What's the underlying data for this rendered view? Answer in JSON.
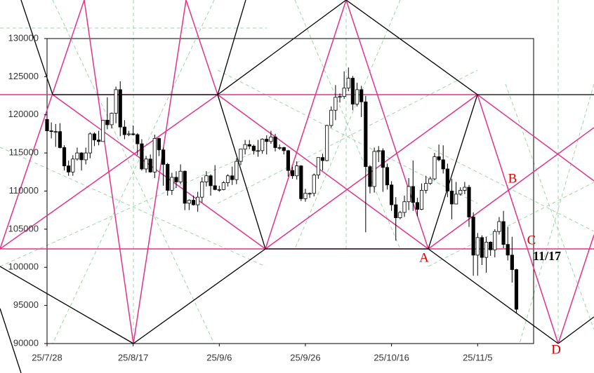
{
  "chart_data": {
    "type": "candlestick",
    "x": [
      "25/7/28",
      "25/7/29",
      "25/7/30",
      "25/7/31",
      "25/8/1",
      "25/8/2",
      "25/8/3",
      "25/8/4",
      "25/8/5",
      "25/8/6",
      "25/8/7",
      "25/8/8",
      "25/8/9",
      "25/8/10",
      "25/8/11",
      "25/8/12",
      "25/8/13",
      "25/8/14",
      "25/8/15",
      "25/8/16",
      "25/8/17",
      "25/8/18",
      "25/8/19",
      "25/8/20",
      "25/8/21",
      "25/8/22",
      "25/8/23",
      "25/8/24",
      "25/8/25",
      "25/8/26",
      "25/8/27",
      "25/8/28",
      "25/8/29",
      "25/8/30",
      "25/8/31",
      "25/9/1",
      "25/9/2",
      "25/9/3",
      "25/9/4",
      "25/9/5",
      "25/9/6",
      "25/9/7",
      "25/9/8",
      "25/9/9",
      "25/9/10",
      "25/9/11",
      "25/9/12",
      "25/9/13",
      "25/9/14",
      "25/9/15",
      "25/9/16",
      "25/9/17",
      "25/9/18",
      "25/9/19",
      "25/9/20",
      "25/9/21",
      "25/9/22",
      "25/9/23",
      "25/9/24",
      "25/9/25",
      "25/9/26",
      "25/9/27",
      "25/9/28",
      "25/9/29",
      "25/9/30",
      "25/10/1",
      "25/10/2",
      "25/10/3",
      "25/10/4",
      "25/10/5",
      "25/10/6",
      "25/10/7",
      "25/10/8",
      "25/10/9",
      "25/10/10",
      "25/10/11",
      "25/10/12",
      "25/10/13",
      "25/10/14",
      "25/10/15",
      "25/10/16",
      "25/10/17",
      "25/10/18",
      "25/10/19",
      "25/10/20",
      "25/10/21",
      "25/10/22",
      "25/10/23",
      "25/10/24",
      "25/10/25",
      "25/10/26",
      "25/10/27",
      "25/10/28",
      "25/10/29",
      "25/10/30",
      "25/10/31",
      "25/11/1",
      "25/11/2",
      "25/11/3",
      "25/11/4",
      "25/11/5",
      "25/11/6",
      "25/11/7",
      "25/11/8",
      "25/11/9",
      "25/11/10",
      "25/11/11",
      "25/11/12",
      "25/11/13",
      "25/11/14"
    ],
    "open": [
      119400,
      117900,
      117800,
      117800,
      115700,
      113300,
      112500,
      114200,
      115000,
      114100,
      115000,
      117500,
      116700,
      116500,
      119300,
      118700,
      120200,
      123300,
      118400,
      117400,
      117500,
      117400,
      116200,
      112900,
      114200,
      112500,
      116900,
      115400,
      113500,
      110100,
      111800,
      111200,
      112600,
      108400,
      108800,
      108200,
      109200,
      111200,
      112000,
      110700,
      110200,
      110200,
      111100,
      112000,
      111500,
      113900,
      115500,
      116100,
      115900,
      115300,
      115300,
      116800,
      116500,
      117100,
      115700,
      115700,
      115300,
      112700,
      112000,
      113300,
      109000,
      109700,
      109700,
      112100,
      114400,
      114000,
      118600,
      120600,
      122300,
      122400,
      123500,
      124800,
      121400,
      123300,
      121700,
      113200,
      110600,
      115200,
      115300,
      113100,
      110800,
      108200,
      106500,
      107200,
      108600,
      110600,
      108500,
      107600,
      110100,
      111000,
      111600,
      114500,
      114100,
      112900,
      110000,
      108300,
      109600,
      110100,
      110500,
      106600,
      101600,
      103900,
      101300,
      103300,
      102300,
      104700,
      106000,
      103000,
      101600,
      99700
    ],
    "high": [
      119800,
      119000,
      118800,
      118900,
      116000,
      114000,
      114700,
      115700,
      115100,
      115700,
      117700,
      117700,
      117900,
      119300,
      122300,
      120300,
      123700,
      124400,
      119300,
      117900,
      118600,
      117600,
      116800,
      114600,
      114800,
      117400,
      117000,
      115700,
      113700,
      112400,
      112600,
      113500,
      112700,
      108900,
      109400,
      109900,
      111800,
      112600,
      112200,
      113400,
      110700,
      111300,
      112200,
      113200,
      114300,
      115500,
      116700,
      116700,
      116100,
      116700,
      116900,
      117300,
      117900,
      117500,
      116100,
      115800,
      115400,
      113200,
      113900,
      113400,
      110300,
      109800,
      112300,
      114400,
      114900,
      118700,
      121100,
      123900,
      122800,
      125700,
      126200,
      125100,
      124200,
      123800,
      122500,
      113400,
      115700,
      115900,
      115600,
      113600,
      111300,
      109200,
      107400,
      109400,
      111700,
      114000,
      109100,
      111000,
      112000,
      111900,
      115000,
      116100,
      116000,
      113600,
      111600,
      111200,
      110500,
      111200,
      110800,
      107200,
      104500,
      104200,
      104000,
      103400,
      105000,
      106600,
      107400,
      105300,
      104000,
      99800
    ],
    "low": [
      117400,
      116900,
      115800,
      115600,
      112700,
      112000,
      112000,
      114000,
      112700,
      113500,
      114300,
      115900,
      116000,
      116500,
      118100,
      118200,
      118900,
      117200,
      116800,
      117200,
      117300,
      114700,
      112700,
      112400,
      112400,
      111700,
      114600,
      110700,
      109400,
      109500,
      110400,
      110900,
      107500,
      107500,
      108100,
      107300,
      108500,
      110600,
      109400,
      110100,
      109900,
      110100,
      110600,
      110800,
      110900,
      113400,
      114800,
      115500,
      114800,
      114500,
      114900,
      114800,
      116200,
      115200,
      115400,
      114800,
      111900,
      111600,
      111500,
      108700,
      108600,
      109100,
      109300,
      111600,
      112700,
      113900,
      118300,
      119300,
      121600,
      122100,
      123100,
      120600,
      121100,
      119700,
      104600,
      109700,
      109800,
      113800,
      109900,
      110200,
      107400,
      103500,
      106300,
      106600,
      107500,
      107400,
      106700,
      107500,
      109700,
      110800,
      111400,
      113900,
      112300,
      109200,
      106300,
      108300,
      109400,
      109600,
      105300,
      98900,
      98900,
      100300,
      99300,
      101500,
      101300,
      104300,
      102500,
      100900,
      98000,
      94000
    ],
    "close": [
      117900,
      117800,
      117800,
      115700,
      113300,
      112500,
      114200,
      115000,
      114100,
      115000,
      117500,
      116700,
      116500,
      119300,
      118700,
      120200,
      123300,
      118400,
      117400,
      117500,
      117400,
      116200,
      112900,
      114200,
      112500,
      116900,
      115400,
      113500,
      110100,
      111800,
      111200,
      112600,
      108400,
      108800,
      108200,
      109200,
      111200,
      112000,
      110700,
      110200,
      110200,
      111100,
      112000,
      111500,
      113900,
      115500,
      116100,
      115900,
      115300,
      115300,
      116800,
      116500,
      117100,
      115700,
      115700,
      115300,
      112700,
      112000,
      113300,
      109000,
      109700,
      109700,
      112100,
      114400,
      114000,
      118600,
      120600,
      122300,
      122400,
      123500,
      124800,
      121400,
      123300,
      121700,
      113200,
      110600,
      115200,
      115300,
      113100,
      110800,
      108200,
      106500,
      107200,
      108600,
      110600,
      108500,
      107600,
      110100,
      111000,
      111600,
      114500,
      114100,
      112900,
      110000,
      108300,
      109600,
      110100,
      110500,
      106600,
      101600,
      103900,
      101300,
      103300,
      102300,
      104700,
      106000,
      103000,
      101600,
      99700,
      94500
    ],
    "up_color": "#ffffff",
    "down_color": "#000000",
    "xlim": [
      "25/7/28",
      "25/11/18"
    ],
    "xticks": [
      "25/7/28",
      "25/8/17",
      "25/9/6",
      "25/9/26",
      "25/10/16",
      "25/11/5"
    ],
    "ylim": [
      90000,
      130000
    ],
    "yticks": [
      90000,
      95000,
      100000,
      105000,
      110000,
      115000,
      120000,
      125000,
      130000
    ],
    "annotations": [
      "A",
      "B",
      "C",
      "D",
      "11/17"
    ]
  }
}
